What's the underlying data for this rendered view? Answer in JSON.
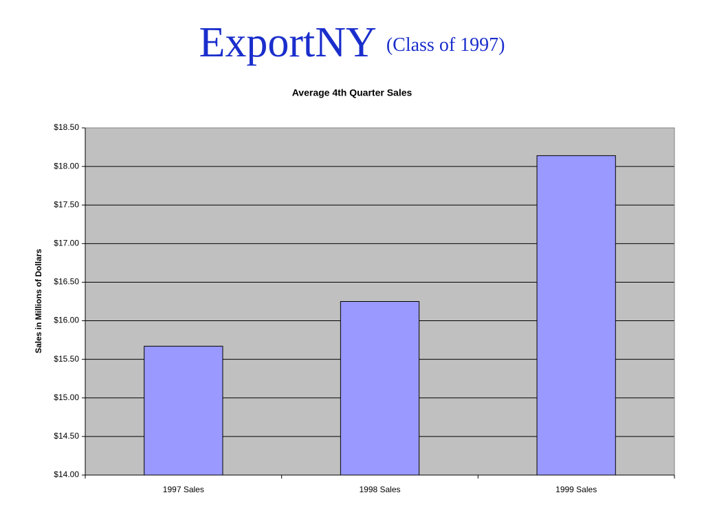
{
  "chart_data": {
    "type": "bar",
    "heading": "ExportNY",
    "subheading": "(Class of 1997)",
    "title": "Average 4th Quarter Sales",
    "ylabel": "Sales in Millions of Dollars",
    "categories": [
      "1997 Sales",
      "1998 Sales",
      "1999 Sales"
    ],
    "values": [
      15.67,
      16.25,
      18.14
    ],
    "color": "#9999ff",
    "ylim": [
      14,
      18.5
    ],
    "yticks": [
      {
        "value": 14,
        "label": "$14.00"
      },
      {
        "value": 14.5,
        "label": "$14.50"
      },
      {
        "value": 15,
        "label": "$15.00"
      },
      {
        "value": 15.5,
        "label": "$15.50"
      },
      {
        "value": 16,
        "label": "$16.00"
      },
      {
        "value": 16.5,
        "label": "$16.50"
      },
      {
        "value": 17,
        "label": "$17.00"
      },
      {
        "value": 17.5,
        "label": "$17.50"
      },
      {
        "value": 18,
        "label": "$18.00"
      },
      {
        "value": 18.5,
        "label": "$18.50"
      }
    ],
    "grid": true
  }
}
